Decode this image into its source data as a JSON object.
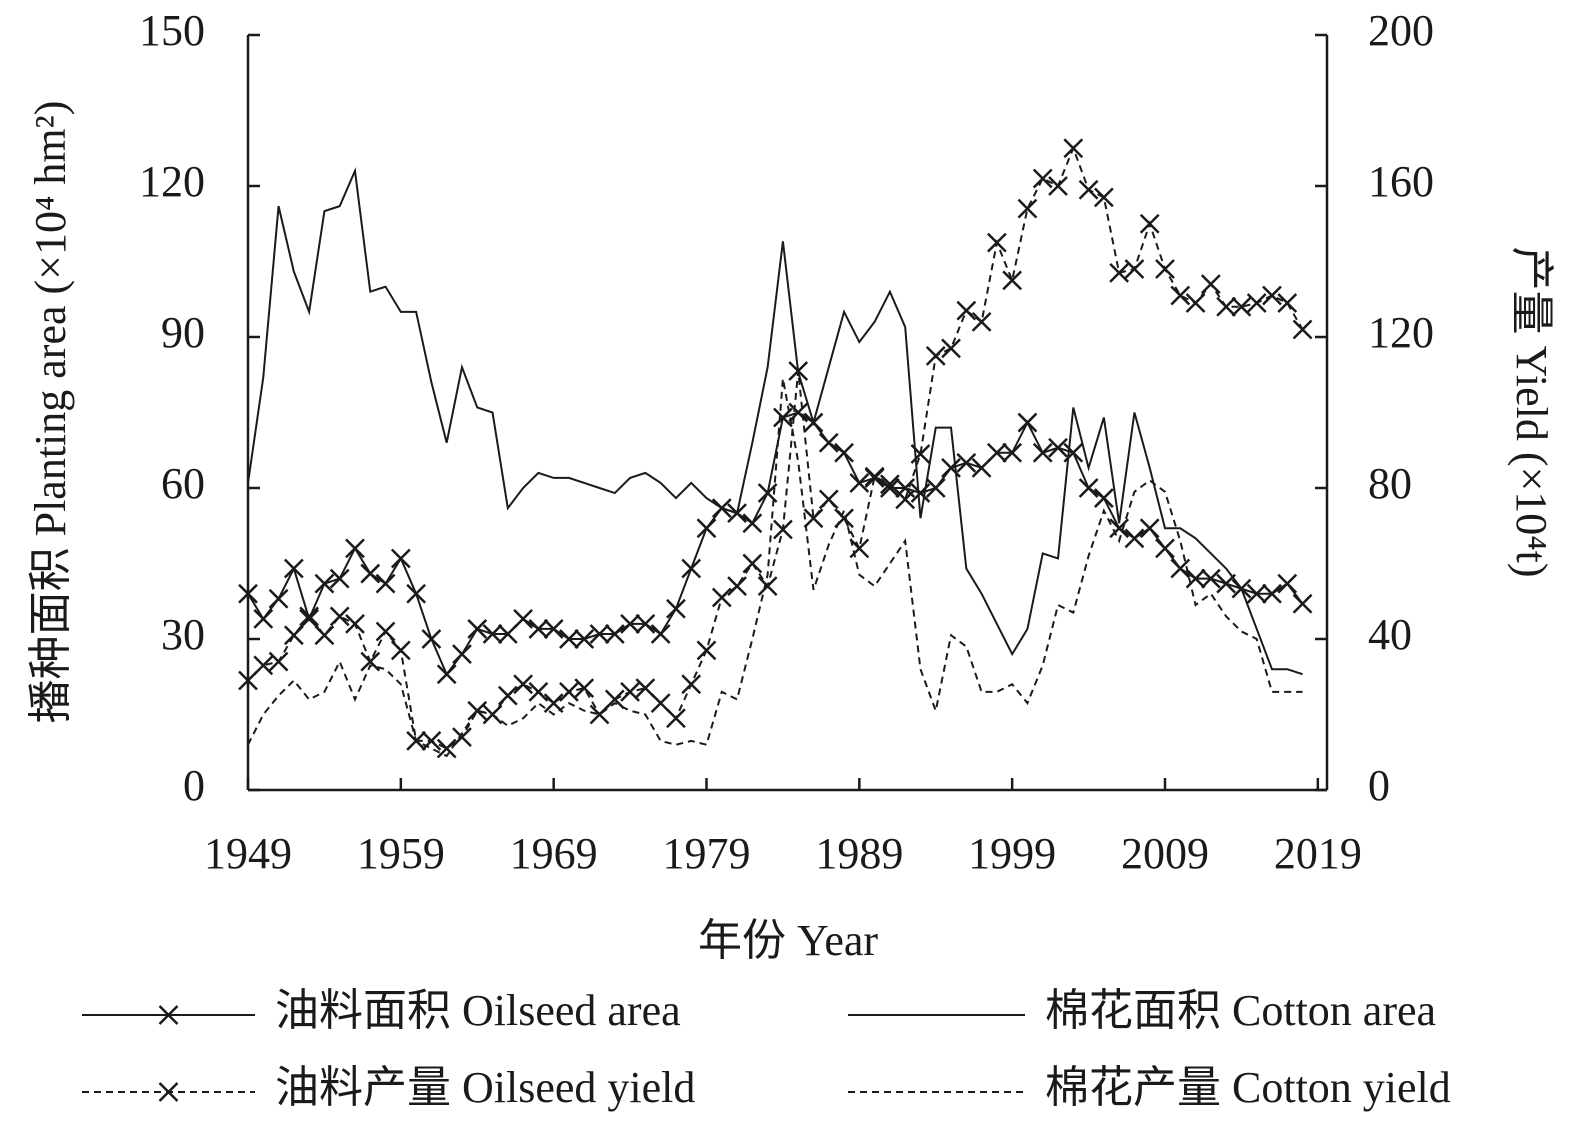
{
  "chart_data": {
    "type": "line",
    "x_label": "年份 Year",
    "y_label": "播种面积 Planting area (×10⁴ hm²)",
    "y2_label": "产量 Yield (×10⁴t)",
    "x": [
      1949,
      1950,
      1951,
      1952,
      1953,
      1954,
      1955,
      1956,
      1957,
      1958,
      1959,
      1960,
      1961,
      1962,
      1963,
      1964,
      1965,
      1966,
      1967,
      1968,
      1969,
      1970,
      1971,
      1972,
      1973,
      1974,
      1975,
      1976,
      1977,
      1978,
      1979,
      1980,
      1981,
      1982,
      1983,
      1984,
      1985,
      1986,
      1987,
      1988,
      1989,
      1990,
      1991,
      1992,
      1993,
      1994,
      1995,
      1996,
      1997,
      1998,
      1999,
      2000,
      2001,
      2002,
      2003,
      2004,
      2005,
      2006,
      2007,
      2008,
      2009,
      2010,
      2011,
      2012,
      2013,
      2014,
      2015,
      2016,
      2017,
      2018
    ],
    "xlim": [
      1949,
      2019.6
    ],
    "xticks": [
      1949,
      1959,
      1969,
      1979,
      1989,
      1999,
      2009,
      2019
    ],
    "ylim": [
      0,
      150
    ],
    "yticks": [
      0,
      30,
      60,
      90,
      120,
      150
    ],
    "y2lim": [
      0,
      200
    ],
    "y2ticks": [
      0,
      40,
      80,
      120,
      160,
      200
    ],
    "series": [
      {
        "name": "油料面积 Oilseed area",
        "color": "#1a1a1a",
        "style": "solid",
        "marker": "x",
        "axis": "y",
        "values": [
          39,
          34,
          38,
          44,
          34,
          41,
          42,
          48,
          43,
          41,
          46,
          39,
          30,
          23,
          27,
          32,
          31,
          31,
          34,
          32,
          32,
          30,
          30,
          31,
          31,
          33,
          33,
          31,
          36,
          44,
          52,
          56,
          55,
          53,
          59,
          74,
          75,
          73,
          69,
          67,
          61,
          62,
          60,
          60,
          59,
          60,
          64,
          65,
          64,
          67,
          67,
          73,
          67,
          68,
          67,
          60,
          58,
          52,
          50,
          52,
          48,
          44,
          42,
          42,
          41,
          40,
          39,
          39,
          41,
          37
        ]
      },
      {
        "name": "棉花面积 Cotton area",
        "color": "#1a1a1a",
        "style": "solid",
        "marker": "none",
        "axis": "y",
        "values": [
          61,
          82,
          116,
          103,
          95,
          115,
          116,
          123,
          99,
          100,
          95,
          95,
          81,
          69,
          84,
          76,
          75,
          56,
          60,
          63,
          62,
          62,
          61,
          60,
          59,
          62,
          63,
          61,
          58,
          61,
          58,
          56,
          55,
          69,
          84,
          109,
          83,
          73,
          84,
          95,
          89,
          93,
          99,
          92,
          54,
          72,
          72,
          44,
          39,
          33,
          27,
          32,
          47,
          46,
          76,
          64,
          74,
          53,
          75,
          64,
          52,
          52,
          50,
          47,
          44,
          40,
          32,
          24,
          24,
          23
        ]
      },
      {
        "name": "油料产量 Oilseed yield",
        "color": "#1a1a1a",
        "style": "dashed",
        "marker": "x",
        "axis": "y2",
        "values": [
          29,
          33,
          34,
          41,
          46,
          41,
          46,
          44,
          34,
          42,
          37,
          13,
          13,
          11,
          14,
          21,
          20,
          25,
          28,
          26,
          23,
          26,
          27,
          20,
          24,
          26,
          27,
          23,
          19,
          28,
          37,
          51,
          54,
          60,
          54,
          69,
          111,
          72,
          77,
          72,
          64,
          83,
          81,
          77,
          89,
          115,
          117,
          127,
          124,
          145,
          135,
          154,
          162,
          160,
          170,
          159,
          157,
          137,
          138,
          150,
          138,
          131,
          129,
          134,
          128,
          128,
          129,
          131,
          129,
          122
        ]
      },
      {
        "name": "棉花产量 Cotton yield",
        "color": "#1a1a1a",
        "style": "dashed",
        "marker": "none",
        "axis": "y2",
        "values": [
          12,
          20,
          25,
          29,
          24,
          26,
          34,
          24,
          33,
          32,
          28,
          13,
          11,
          9,
          15,
          21,
          20,
          17,
          19,
          23,
          20,
          23,
          21,
          20,
          23,
          21,
          20,
          13,
          12,
          13,
          12,
          26,
          24,
          40,
          57,
          109,
          87,
          53,
          65,
          74,
          57,
          54,
          60,
          66,
          32,
          21,
          41,
          38,
          26,
          26,
          28,
          23,
          33,
          49,
          47,
          62,
          74,
          66,
          79,
          82,
          79,
          66,
          49,
          52,
          46,
          42,
          40,
          26,
          26,
          26
        ]
      }
    ]
  }
}
